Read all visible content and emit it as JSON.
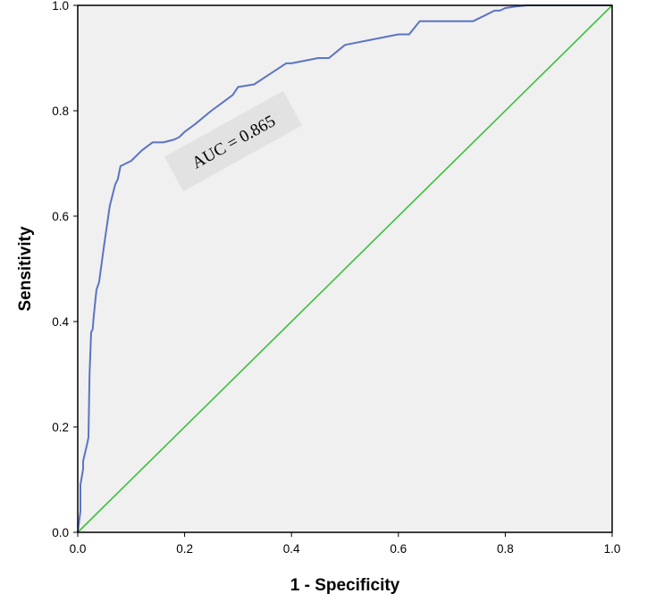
{
  "chart_data": {
    "type": "line",
    "xlabel": "1 - Specificity",
    "ylabel": "Sensitivity",
    "xlim": [
      0,
      1
    ],
    "ylim": [
      0,
      1
    ],
    "x_ticks": [
      "0.0",
      "0.2",
      "0.4",
      "0.6",
      "0.8",
      "1.0"
    ],
    "y_ticks": [
      "0.0",
      "0.2",
      "0.4",
      "0.6",
      "0.8",
      "1.0"
    ],
    "grid": false,
    "annotation": "AUC = 0.865",
    "colors": {
      "background": "#f0f0f0",
      "roc_curve": "#5b74c4",
      "reference_line": "#3cbf3c",
      "annotation_box": "#e2e2e2"
    },
    "series": [
      {
        "x": [
          0.0,
          0.005,
          0.005,
          0.01,
          0.01,
          0.018,
          0.02,
          0.022,
          0.025,
          0.028,
          0.03,
          0.035,
          0.04,
          0.05,
          0.06,
          0.07,
          0.075,
          0.08,
          0.1,
          0.12,
          0.14,
          0.16,
          0.18,
          0.19,
          0.2,
          0.22,
          0.25,
          0.27,
          0.29,
          0.3,
          0.33,
          0.36,
          0.39,
          0.4,
          0.45,
          0.47,
          0.5,
          0.55,
          0.6,
          0.62,
          0.64,
          0.7,
          0.74,
          0.76,
          0.78,
          0.79,
          0.8,
          0.82,
          0.84,
          0.9,
          1.0
        ],
        "y": [
          0.0,
          0.04,
          0.09,
          0.12,
          0.135,
          0.17,
          0.18,
          0.3,
          0.38,
          0.385,
          0.41,
          0.46,
          0.475,
          0.55,
          0.62,
          0.66,
          0.67,
          0.695,
          0.705,
          0.725,
          0.74,
          0.74,
          0.745,
          0.75,
          0.76,
          0.775,
          0.8,
          0.815,
          0.83,
          0.845,
          0.85,
          0.87,
          0.89,
          0.89,
          0.9,
          0.9,
          0.925,
          0.935,
          0.945,
          0.945,
          0.97,
          0.97,
          0.97,
          0.98,
          0.99,
          0.99,
          0.995,
          0.998,
          1.0,
          1.0,
          1.0
        ]
      },
      {
        "x": [
          0,
          1
        ],
        "y": [
          0,
          1
        ]
      }
    ]
  }
}
